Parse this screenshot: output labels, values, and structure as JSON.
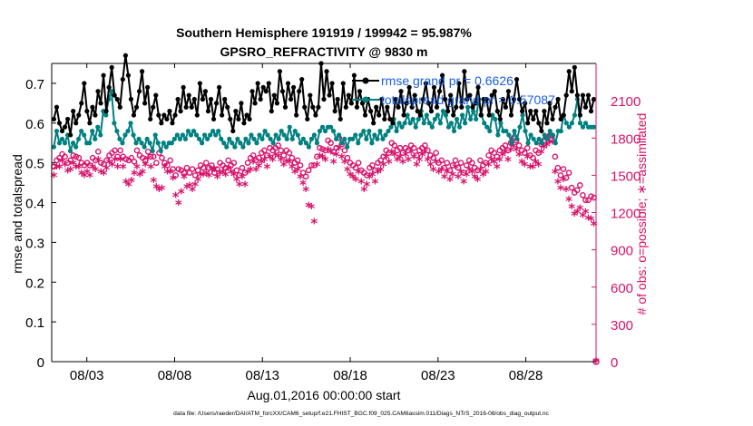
{
  "chart_data": {
    "type": "line",
    "title_line1": "Southern Hemisphere 191919 / 199942 = 95.987%",
    "title_line2": "GPSRO_REFRACTIVITY @ 9830 m",
    "xlabel": "Aug.01,2016 00:00:00 start",
    "ylabel_left": "rmse and totalspread",
    "ylabel_right": "# of obs: o=possible; ∗=assimilated",
    "footer": "data file: /Users/raeder/DAI/ATM_forcXX/CAM6_setup/f.e21.FHIST_BGC.f09_025.CAM6assim.011/Diags_NTrS_2016-08/obs_diag_output.nc",
    "x_range_days": [
      1,
      32
    ],
    "x_ticks": [
      {
        "day": 3,
        "label": "08/03"
      },
      {
        "day": 8,
        "label": "08/08"
      },
      {
        "day": 13,
        "label": "08/13"
      },
      {
        "day": 18,
        "label": "08/18"
      },
      {
        "day": 23,
        "label": "08/23"
      },
      {
        "day": 28,
        "label": "08/28"
      }
    ],
    "y_left": {
      "min": 0,
      "max": 0.75,
      "ticks": [
        "0",
        "0.1",
        "0.2",
        "0.3",
        "0.4",
        "0.5",
        "0.6",
        "0.7"
      ],
      "tick_values": [
        0,
        0.1,
        0.2,
        0.3,
        0.4,
        0.5,
        0.6,
        0.7
      ]
    },
    "y_right": {
      "min": 0,
      "max": 2400,
      "ticks": [
        "0",
        "300",
        "600",
        "900",
        "1200",
        "1500",
        "1800",
        "2100"
      ],
      "tick_values": [
        0,
        300,
        600,
        900,
        1200,
        1500,
        1800,
        2100
      ]
    },
    "legend": [
      {
        "name": "rmse grand pr = 0.6626",
        "color": "#000000"
      },
      {
        "name": "totalspread grand pr = 0.57087",
        "color": "#008080"
      }
    ],
    "colors": {
      "rmse": "#000000",
      "spread": "#008080",
      "obs": "#d6136b",
      "legend_text": "#1a5fe0"
    },
    "rmse": [
      0.61,
      0.64,
      0.6,
      0.58,
      0.59,
      0.61,
      0.57,
      0.63,
      0.6,
      0.62,
      0.65,
      0.7,
      0.63,
      0.6,
      0.64,
      0.62,
      0.68,
      0.65,
      0.72,
      0.63,
      0.69,
      0.74,
      0.67,
      0.66,
      0.64,
      0.71,
      0.77,
      0.72,
      0.66,
      0.62,
      0.64,
      0.68,
      0.73,
      0.65,
      0.69,
      0.61,
      0.64,
      0.67,
      0.62,
      0.6,
      0.62,
      0.61,
      0.63,
      0.6,
      0.62,
      0.66,
      0.63,
      0.69,
      0.64,
      0.67,
      0.64,
      0.66,
      0.62,
      0.7,
      0.66,
      0.68,
      0.63,
      0.66,
      0.61,
      0.65,
      0.69,
      0.62,
      0.66,
      0.64,
      0.61,
      0.58,
      0.63,
      0.61,
      0.65,
      0.6,
      0.62,
      0.61,
      0.68,
      0.65,
      0.7,
      0.66,
      0.69,
      0.68,
      0.7,
      0.63,
      0.67,
      0.65,
      0.73,
      0.68,
      0.64,
      0.7,
      0.66,
      0.69,
      0.62,
      0.68,
      0.71,
      0.64,
      0.61,
      0.67,
      0.64,
      0.62,
      0.64,
      0.75,
      0.66,
      0.73,
      0.67,
      0.7,
      0.63,
      0.66,
      0.61,
      0.7,
      0.64,
      0.67,
      0.65,
      0.72,
      0.64,
      0.68,
      0.65,
      0.62,
      0.66,
      0.63,
      0.6,
      0.64,
      0.62,
      0.66,
      0.61,
      0.64,
      0.61,
      0.6,
      0.66,
      0.64,
      0.68,
      0.62,
      0.65,
      0.69,
      0.64,
      0.67,
      0.63,
      0.62,
      0.66,
      0.7,
      0.65,
      0.63,
      0.69,
      0.64,
      0.68,
      0.72,
      0.66,
      0.63,
      0.67,
      0.62,
      0.64,
      0.7,
      0.64,
      0.73,
      0.66,
      0.67,
      0.64,
      0.65,
      0.69,
      0.62,
      0.66,
      0.66,
      0.62,
      0.67,
      0.68,
      0.63,
      0.61,
      0.66,
      0.64,
      0.68,
      0.62,
      0.66,
      0.71,
      0.66,
      0.63,
      0.65,
      0.6,
      0.63,
      0.61,
      0.63,
      0.6,
      0.58,
      0.63,
      0.6,
      0.65,
      0.61,
      0.64,
      0.66,
      0.61,
      0.62,
      0.67,
      0.73,
      0.68,
      0.74,
      0.67,
      0.62,
      0.67,
      0.64,
      0.67,
      0.63,
      0.66
    ],
    "totalspread": [
      0.54,
      0.58,
      0.55,
      0.56,
      0.55,
      0.57,
      0.53,
      0.55,
      0.54,
      0.56,
      0.58,
      0.57,
      0.55,
      0.55,
      0.58,
      0.56,
      0.59,
      0.57,
      0.63,
      0.62,
      0.66,
      0.68,
      0.6,
      0.58,
      0.56,
      0.55,
      0.57,
      0.58,
      0.6,
      0.57,
      0.55,
      0.56,
      0.55,
      0.54,
      0.56,
      0.55,
      0.53,
      0.57,
      0.55,
      0.53,
      0.55,
      0.54,
      0.55,
      0.55,
      0.56,
      0.57,
      0.56,
      0.57,
      0.56,
      0.58,
      0.57,
      0.58,
      0.57,
      0.56,
      0.55,
      0.57,
      0.56,
      0.57,
      0.58,
      0.57,
      0.58,
      0.56,
      0.55,
      0.54,
      0.56,
      0.55,
      0.54,
      0.56,
      0.55,
      0.54,
      0.56,
      0.55,
      0.57,
      0.56,
      0.55,
      0.57,
      0.56,
      0.58,
      0.57,
      0.56,
      0.55,
      0.57,
      0.56,
      0.58,
      0.57,
      0.56,
      0.59,
      0.56,
      0.58,
      0.57,
      0.55,
      0.56,
      0.55,
      0.54,
      0.56,
      0.57,
      0.55,
      0.58,
      0.59,
      0.58,
      0.59,
      0.59,
      0.58,
      0.56,
      0.57,
      0.55,
      0.56,
      0.54,
      0.56,
      0.56,
      0.57,
      0.55,
      0.57,
      0.58,
      0.56,
      0.58,
      0.55,
      0.57,
      0.56,
      0.58,
      0.56,
      0.57,
      0.58,
      0.59,
      0.61,
      0.58,
      0.6,
      0.59,
      0.6,
      0.62,
      0.6,
      0.61,
      0.59,
      0.61,
      0.63,
      0.6,
      0.62,
      0.6,
      0.59,
      0.61,
      0.62,
      0.6,
      0.63,
      0.62,
      0.59,
      0.6,
      0.58,
      0.61,
      0.59,
      0.62,
      0.6,
      0.64,
      0.61,
      0.63,
      0.61,
      0.66,
      0.62,
      0.6,
      0.59,
      0.58,
      0.62,
      0.61,
      0.57,
      0.6,
      0.58,
      0.58,
      0.57,
      0.55,
      0.58,
      0.56,
      0.59,
      0.62,
      0.58,
      0.55,
      0.57,
      0.56,
      0.55,
      0.56,
      0.55,
      0.57,
      0.56,
      0.58,
      0.57,
      0.55,
      0.58,
      0.58,
      0.62,
      0.6,
      0.59,
      0.6,
      0.62,
      0.66,
      0.6,
      0.59,
      0.6,
      0.59,
      0.59,
      0.59
    ],
    "obs_possible": [
      1570,
      1620,
      1640,
      1670,
      1650,
      1600,
      1620,
      1660,
      1650,
      1640,
      1600,
      1580,
      1600,
      1580,
      1640,
      1620,
      1690,
      1600,
      1590,
      1620,
      1660,
      1680,
      1700,
      1650,
      1700,
      1650,
      1630,
      1620,
      1640,
      1610,
      1700,
      1660,
      1640,
      1620,
      1690,
      1650,
      1650,
      1600,
      1680,
      1640,
      1600,
      1580,
      1620,
      1550,
      1500,
      1550,
      1540,
      1520,
      1560,
      1520,
      1550,
      1500,
      1540,
      1580,
      1560,
      1600,
      1560,
      1580,
      1520,
      1550,
      1600,
      1580,
      1560,
      1620,
      1580,
      1600,
      1540,
      1500,
      1560,
      1520,
      1600,
      1640,
      1660,
      1620,
      1640,
      1680,
      1700,
      1660,
      1720,
      1700,
      1720,
      1740,
      1700,
      1660,
      1700,
      1680,
      1640,
      1600,
      1620,
      1580,
      1520,
      1490,
      1540,
      1580,
      1580,
      1650,
      1720,
      1710,
      1700,
      1780,
      1760,
      1690,
      1720,
      1800,
      1750,
      1700,
      1640,
      1600,
      1580,
      1560,
      1600,
      1540,
      1520,
      1500,
      1560,
      1580,
      1540,
      1600,
      1620,
      1650,
      1700,
      1680,
      1760,
      1740,
      1700,
      1720,
      1680,
      1720,
      1700,
      1740,
      1720,
      1660,
      1700,
      1720,
      1740,
      1700,
      1660,
      1640,
      1680,
      1600,
      1620,
      1560,
      1600,
      1540,
      1580,
      1620,
      1560,
      1600,
      1520,
      1580,
      1620,
      1600,
      1560,
      1540,
      1620,
      1580,
      1600,
      1660,
      1700,
      1680,
      1650,
      1700,
      1720,
      1740,
      1700,
      1760,
      1800,
      1780,
      1740,
      1700,
      1680,
      1720,
      1660,
      1640,
      1700,
      1680,
      1750,
      1780,
      1800,
      1820,
      1820,
      1650,
      1560,
      1500,
      1550,
      1480,
      1520,
      1400,
      1360,
      1380,
      1420,
      1340,
      1300,
      1300,
      1330,
      1320
    ],
    "obs_assimilated": [
      1490,
      1560,
      1560,
      1610,
      1580,
      1530,
      1540,
      1590,
      1560,
      1560,
      1510,
      1490,
      1520,
      1490,
      1560,
      1540,
      1620,
      1520,
      1510,
      1550,
      1600,
      1580,
      1620,
      1560,
      1620,
      1560,
      1440,
      1420,
      1450,
      1510,
      1560,
      1500,
      1520,
      1580,
      1630,
      1560,
      1450,
      1400,
      1380,
      1390,
      1560,
      1520,
      1520,
      1470,
      1330,
      1270,
      1360,
      1480,
      1400,
      1410,
      1380,
      1420,
      1460,
      1500,
      1500,
      1510,
      1490,
      1540,
      1540,
      1480,
      1510,
      1520,
      1500,
      1550,
      1520,
      1500,
      1460,
      1420,
      1480,
      1420,
      1520,
      1540,
      1600,
      1540,
      1570,
      1600,
      1620,
      1560,
      1640,
      1620,
      1660,
      1650,
      1620,
      1580,
      1610,
      1600,
      1560,
      1520,
      1540,
      1480,
      1430,
      1380,
      1250,
      1240,
      1120,
      1580,
      1650,
      1640,
      1620,
      1700,
      1680,
      1600,
      1660,
      1710,
      1640,
      1600,
      1540,
      1500,
      1480,
      1460,
      1520,
      1440,
      1380,
      1420,
      1480,
      1500,
      1440,
      1520,
      1540,
      1580,
      1640,
      1600,
      1680,
      1660,
      1620,
      1640,
      1600,
      1660,
      1620,
      1680,
      1640,
      1580,
      1620,
      1660,
      1680,
      1620,
      1580,
      1540,
      1600,
      1520,
      1540,
      1480,
      1520,
      1460,
      1500,
      1560,
      1480,
      1520,
      1440,
      1500,
      1540,
      1520,
      1480,
      1460,
      1540,
      1500,
      1520,
      1580,
      1620,
      1600,
      1560,
      1620,
      1660,
      1680,
      1620,
      1700,
      1730,
      1700,
      1660,
      1600,
      1580,
      1640,
      1560,
      1560,
      1600,
      1580,
      1680,
      1720,
      1740,
      1760,
      1760,
      1520,
      1440,
      1390,
      1460,
      1380,
      1300,
      1240,
      1180,
      1200,
      1230,
      1170,
      1200,
      1150,
      1140,
      1100
    ]
  }
}
